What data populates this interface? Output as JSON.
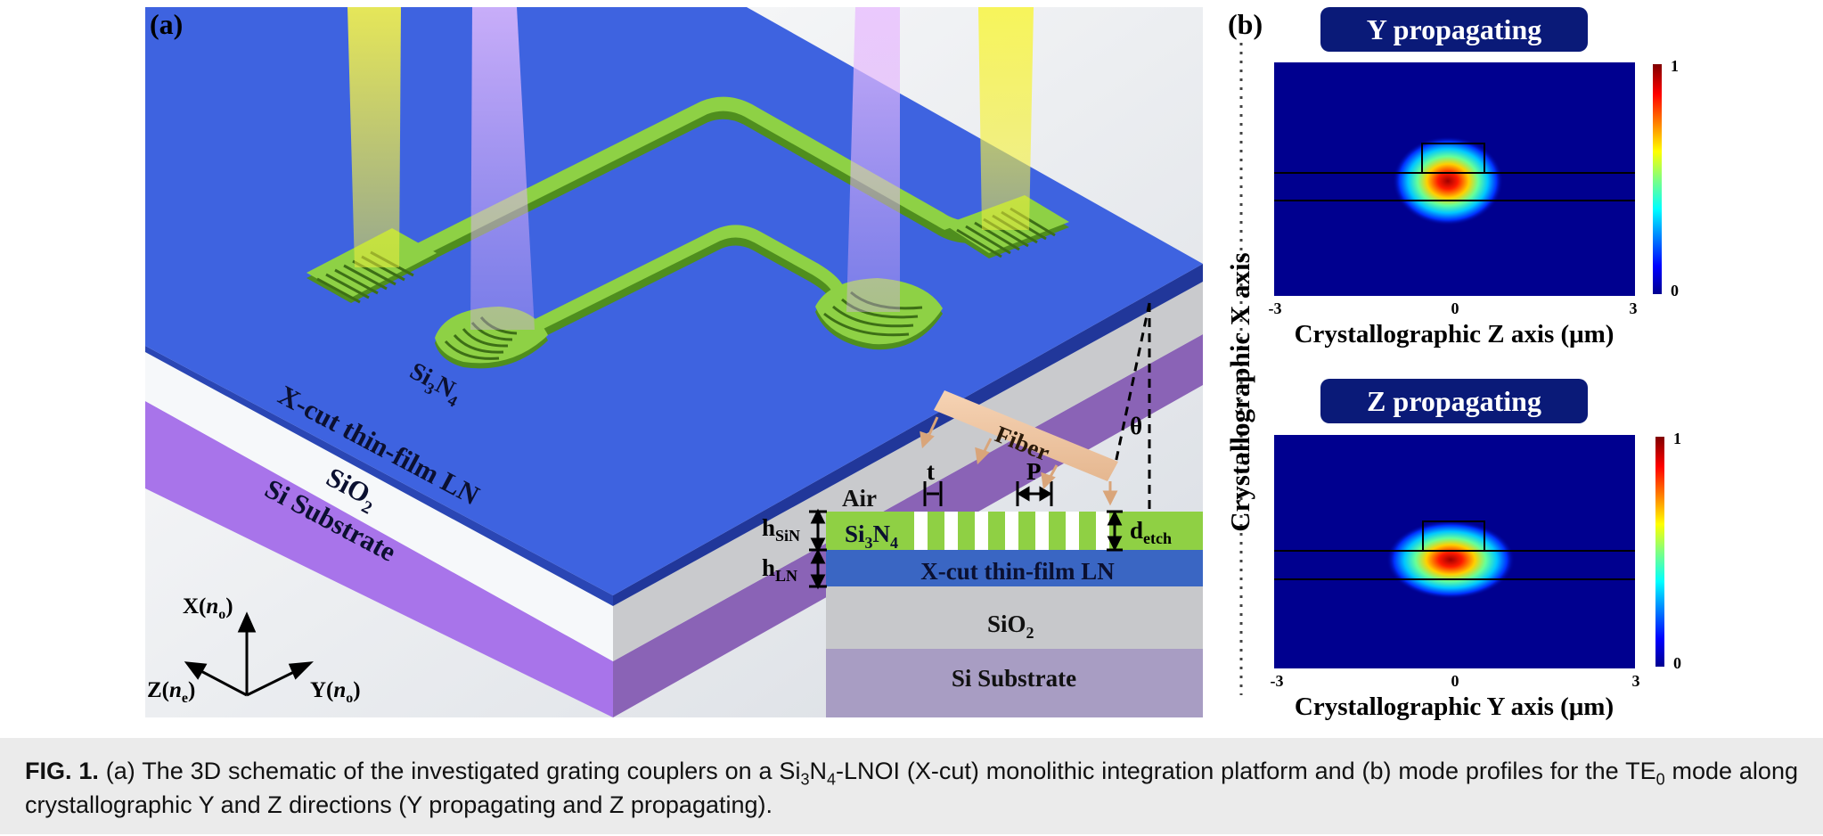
{
  "panel_a": {
    "label": "(a)",
    "layers": {
      "tfln": "X-cut thin-film LN",
      "sio2": "SiO",
      "sio2_sub": "2",
      "si": "Si Substrate"
    },
    "waveguide_label": "Si",
    "waveguide_sub1": "3",
    "waveguide_mid": "N",
    "waveguide_sub2": "4",
    "axes": {
      "x_pre": "X(",
      "x_n": "n",
      "x_sub": "o",
      "x_post": ")",
      "z_pre": "Z(",
      "z_n": "n",
      "z_sub": "e",
      "z_post": ")",
      "y_pre": "Y(",
      "y_n": "n",
      "y_sub": "o",
      "y_post": ")"
    },
    "inset": {
      "fiber": "Fiber",
      "theta": "θ",
      "air": "Air",
      "t": "t",
      "p": "P",
      "h_sin_main": "h",
      "h_sin_sub": "SiN",
      "h_ln_main": "h",
      "h_ln_sub": "LN",
      "d_main": "d",
      "d_sub": "etch",
      "layer_tfln": "X-cut thin-film LN"
    }
  },
  "panel_b": {
    "label": "(b)",
    "side_axis": "Crystallographic X axis",
    "plots": [
      {
        "title": "Y propagating",
        "xlabel": "Crystallographic Z axis (μm)",
        "ticks": [
          "-3",
          "0",
          "3"
        ],
        "colorbar": [
          "1",
          "0"
        ]
      },
      {
        "title": "Z propagating",
        "xlabel": "Crystallographic Y axis (μm)",
        "ticks": [
          "-3",
          "0",
          "3"
        ],
        "colorbar": [
          "1",
          "0"
        ]
      }
    ]
  },
  "caption": {
    "label": "FIG. 1.",
    "p1": " (a) The 3D schematic of the investigated grating couplers on a Si",
    "s1": "3",
    "p2": "N",
    "s2": "4",
    "p3": "-LNOI (X-cut) monolithic integration platform and (b) mode profiles for the TE",
    "s3": "0",
    "p4": " mode along crystallographic Y and Z directions (Y propagating and Z propagating)."
  },
  "colors": {
    "ln_blue": "#3e63e0",
    "sio2_white": "#f4f6f8",
    "si_purple": "#a775e8",
    "sin_green": "#8fd044",
    "beam_yellow": "#f5f240",
    "beam_violet": "#e5b4ff",
    "title_navy": "#0a1a78",
    "jet_dark": "#00008f"
  }
}
